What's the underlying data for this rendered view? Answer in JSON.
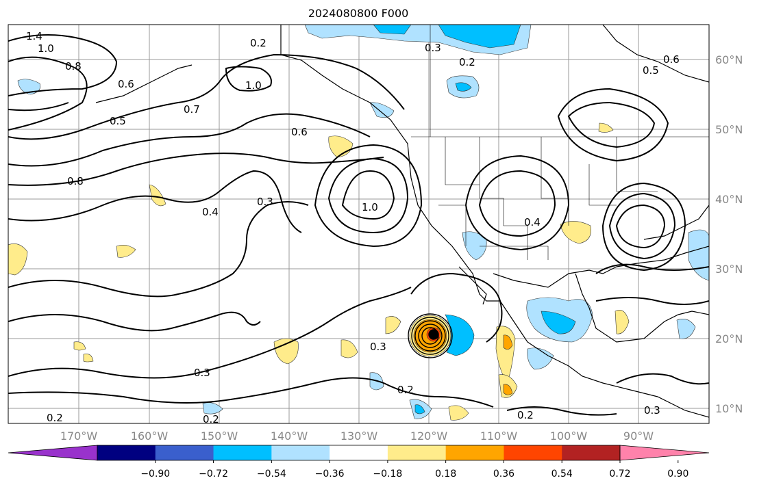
{
  "title": "2024080800 F000",
  "longitude_labels": [
    "170°W",
    "160°W",
    "150°W",
    "140°W",
    "130°W",
    "120°W",
    "110°W",
    "100°W",
    "90°W"
  ],
  "latitude_labels": [
    "60°N",
    "50°N",
    "40°N",
    "30°N",
    "20°N",
    "10°N"
  ],
  "colorbar": {
    "ticks": [
      "−0.90",
      "−0.72",
      "−0.54",
      "−0.36",
      "−0.18",
      "0.18",
      "0.36",
      "0.54",
      "0.72",
      "0.90"
    ],
    "colors": [
      "#9932cc",
      "#000080",
      "#3a5fcd",
      "#00bfff",
      "#b0e2ff",
      "#ffffff",
      "#ffec8b",
      "#ffa500",
      "#ff4500",
      "#b22222",
      "#ff82ab"
    ]
  },
  "contour_labels": [
    "1.4",
    "1.0",
    "0.8",
    "0.6",
    "0.5",
    "0.4",
    "0.3",
    "0.2",
    "0.7"
  ],
  "fill_colors": {
    "light_blue": "#b0e2ff",
    "blue": "#00bfff",
    "yellow": "#ffec8b",
    "orange": "#ffa500",
    "red_orange": "#ff4500"
  }
}
